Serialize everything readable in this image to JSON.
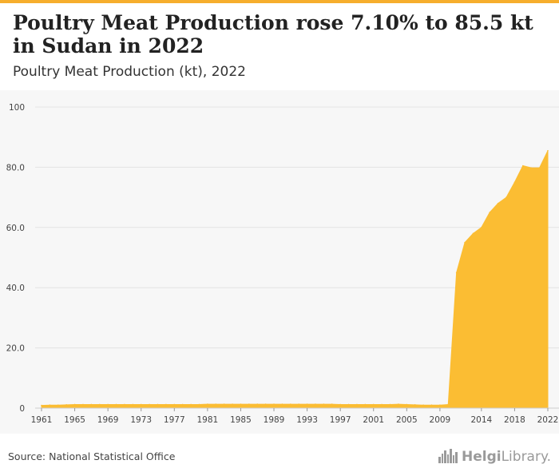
{
  "colors": {
    "accent": "#f6ae2d",
    "fill": "#fbbd33",
    "grid": "#e4e4e4",
    "text": "#222222"
  },
  "header": {
    "title": "Poultry Meat Production rose 7.10% to 85.5 kt in Sudan in 2022",
    "subtitle": "Poultry Meat Production (kt), 2022"
  },
  "footer": {
    "source": "Source: National Statistical Office",
    "logo_text_bold": "Helgi",
    "logo_text_rest": "Library.",
    "logo_icon": "city-skyline-icon"
  },
  "chart_data": {
    "type": "area",
    "title": "Poultry Meat Production rose 7.10% to 85.5 kt in Sudan in 2022",
    "subtitle": "Poultry Meat Production (kt), 2022",
    "xlabel": "",
    "ylabel": "",
    "ylim": [
      0,
      100
    ],
    "yticks": [
      "0",
      "20.0",
      "40.0",
      "60.0",
      "80.0",
      "100"
    ],
    "xticks": [
      "1961",
      "1965",
      "1969",
      "1973",
      "1977",
      "1981",
      "1985",
      "1989",
      "1993",
      "1997",
      "2001",
      "2005",
      "2009",
      "2014",
      "2018",
      "2022"
    ],
    "grid": true,
    "series": [
      {
        "values": [
          {
            "x": 1961,
            "y": 0.9
          },
          {
            "x": 1962,
            "y": 1.0
          },
          {
            "x": 1963,
            "y": 1.0
          },
          {
            "x": 1964,
            "y": 1.1
          },
          {
            "x": 1965,
            "y": 1.2
          },
          {
            "x": 1966,
            "y": 1.2
          },
          {
            "x": 1967,
            "y": 1.2
          },
          {
            "x": 1968,
            "y": 1.2
          },
          {
            "x": 1969,
            "y": 1.2
          },
          {
            "x": 1970,
            "y": 1.2
          },
          {
            "x": 1971,
            "y": 1.2
          },
          {
            "x": 1972,
            "y": 1.2
          },
          {
            "x": 1973,
            "y": 1.2
          },
          {
            "x": 1974,
            "y": 1.2
          },
          {
            "x": 1975,
            "y": 1.2
          },
          {
            "x": 1976,
            "y": 1.2
          },
          {
            "x": 1977,
            "y": 1.2
          },
          {
            "x": 1978,
            "y": 1.2
          },
          {
            "x": 1979,
            "y": 1.2
          },
          {
            "x": 1980,
            "y": 1.2
          },
          {
            "x": 1981,
            "y": 1.3
          },
          {
            "x": 1982,
            "y": 1.3
          },
          {
            "x": 1983,
            "y": 1.3
          },
          {
            "x": 1984,
            "y": 1.3
          },
          {
            "x": 1985,
            "y": 1.3
          },
          {
            "x": 1986,
            "y": 1.3
          },
          {
            "x": 1987,
            "y": 1.3
          },
          {
            "x": 1988,
            "y": 1.3
          },
          {
            "x": 1989,
            "y": 1.3
          },
          {
            "x": 1990,
            "y": 1.3
          },
          {
            "x": 1991,
            "y": 1.3
          },
          {
            "x": 1992,
            "y": 1.3
          },
          {
            "x": 1993,
            "y": 1.3
          },
          {
            "x": 1994,
            "y": 1.3
          },
          {
            "x": 1995,
            "y": 1.3
          },
          {
            "x": 1996,
            "y": 1.3
          },
          {
            "x": 1997,
            "y": 1.2
          },
          {
            "x": 1998,
            "y": 1.2
          },
          {
            "x": 1999,
            "y": 1.2
          },
          {
            "x": 2000,
            "y": 1.2
          },
          {
            "x": 2001,
            "y": 1.2
          },
          {
            "x": 2002,
            "y": 1.2
          },
          {
            "x": 2003,
            "y": 1.2
          },
          {
            "x": 2004,
            "y": 1.3
          },
          {
            "x": 2005,
            "y": 1.2
          },
          {
            "x": 2006,
            "y": 1.1
          },
          {
            "x": 2007,
            "y": 1.0
          },
          {
            "x": 2008,
            "y": 1.0
          },
          {
            "x": 2009,
            "y": 1.0
          },
          {
            "x": 2010,
            "y": 1.2
          },
          {
            "x": 2011,
            "y": 45.0
          },
          {
            "x": 2012,
            "y": 55.0
          },
          {
            "x": 2013,
            "y": 58.0
          },
          {
            "x": 2014,
            "y": 60.0
          },
          {
            "x": 2015,
            "y": 65.0
          },
          {
            "x": 2016,
            "y": 68.0
          },
          {
            "x": 2017,
            "y": 70.0
          },
          {
            "x": 2018,
            "y": 75.0
          },
          {
            "x": 2019,
            "y": 80.5
          },
          {
            "x": 2020,
            "y": 79.8
          },
          {
            "x": 2021,
            "y": 79.8
          },
          {
            "x": 2022,
            "y": 85.5
          }
        ]
      }
    ]
  }
}
